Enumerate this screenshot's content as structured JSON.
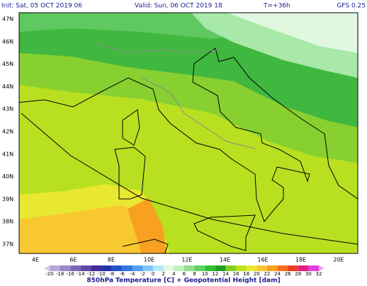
{
  "header": {
    "init": "Init: Sat, 05 OCT 2019  06",
    "valid": "Valid: Sun, 06 OCT 2019  18",
    "lead": "T=+36h",
    "model": "GFS 0.25"
  },
  "lat_labels": [
    "47N",
    "46N",
    "45N",
    "44N",
    "43N",
    "42N",
    "41N",
    "40N",
    "39N",
    "38N",
    "37N"
  ],
  "lon_labels": [
    "4E",
    "6E",
    "8E",
    "10E",
    "12E",
    "14E",
    "16E",
    "18E",
    "20E"
  ],
  "colorbar": {
    "labels": [
      -20,
      -18,
      -16,
      -14,
      -12,
      -10,
      -8,
      -6,
      -4,
      -2,
      0,
      2,
      4,
      6,
      8,
      10,
      12,
      14,
      16,
      18,
      20,
      22,
      24,
      26,
      28,
      30,
      32
    ],
    "colors": [
      "#b8a8d8",
      "#9a88c8",
      "#7c68b8",
      "#5e48a8",
      "#402c98",
      "#2034a8",
      "#2454c8",
      "#3474e0",
      "#50a0f0",
      "#80c8f8",
      "#b0e8f8",
      "#e0f8e0",
      "#c0f0c0",
      "#90e090",
      "#60d060",
      "#30c030",
      "#20a020",
      "#80d020",
      "#c0e020",
      "#e8e830",
      "#f8c830",
      "#f8a020",
      "#f07020",
      "#e84020",
      "#e02080",
      "#e040e0"
    ]
  },
  "footer": "850hPa Temperature [C] + Geopotential Height [dam]"
}
